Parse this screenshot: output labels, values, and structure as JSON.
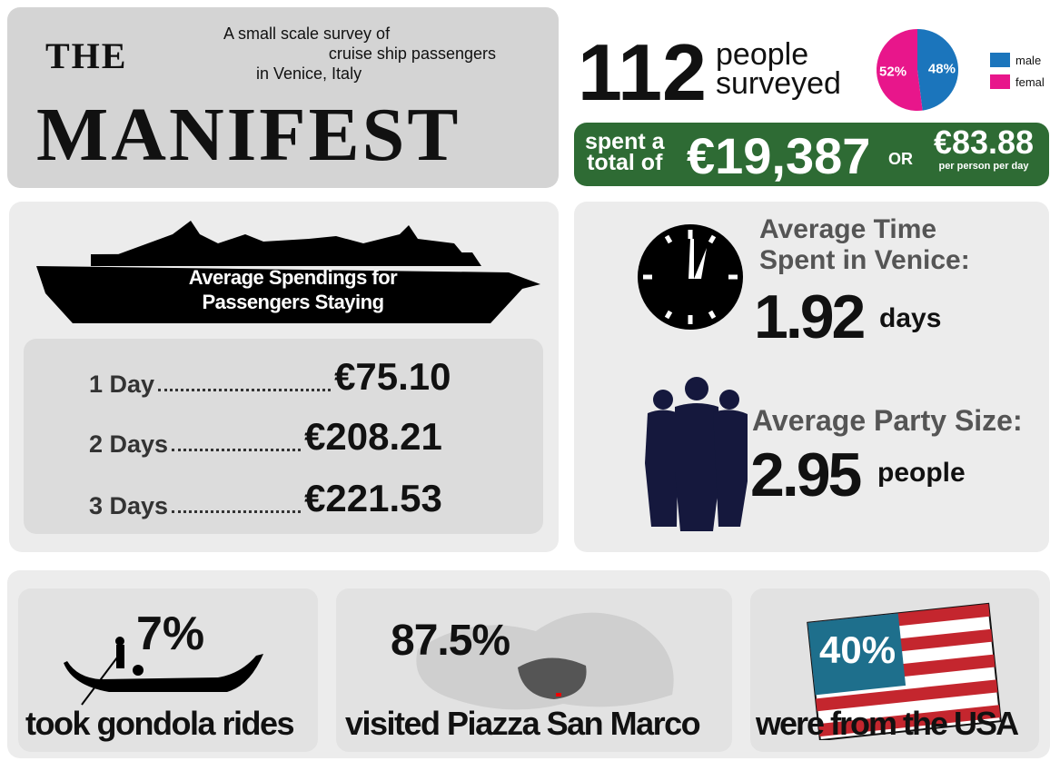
{
  "header": {
    "title_top": "THE",
    "title_main": "MANIFEST",
    "subtitle_lines": [
      "A small scale survey of",
      "cruise ship passengers",
      "in Venice, Italy"
    ]
  },
  "survey": {
    "count": "112",
    "count_label_lines": [
      "people",
      "surveyed"
    ]
  },
  "gender": {
    "type": "pie",
    "categories": [
      "male",
      "female"
    ],
    "values": [
      48,
      52
    ],
    "value_labels": [
      "48%",
      "52%"
    ],
    "colors": [
      "#1b75bc",
      "#e8168b"
    ]
  },
  "spending": {
    "prefix_lines": [
      "spent a",
      "total of"
    ],
    "total": "€19,387",
    "or": "OR",
    "per_person": "€83.88",
    "per_person_note": "per person per day"
  },
  "stay": {
    "title_lines": [
      "Average Spendings for",
      "Passengers Staying"
    ],
    "rows": [
      {
        "label": "1 Day",
        "amount": "€75.10"
      },
      {
        "label": "2 Days",
        "amount": "€208.21"
      },
      {
        "label": "3 Days",
        "amount": "€221.53"
      }
    ]
  },
  "time": {
    "title_lines": [
      "Average Time",
      "Spent in Venice:"
    ],
    "value": "1.92",
    "unit": "days"
  },
  "party": {
    "title": "Average Party Size:",
    "value": "2.95",
    "unit": "people"
  },
  "stats": [
    {
      "value": "7%",
      "label": "took gondola rides"
    },
    {
      "value": "87.5%",
      "label": "visited Piazza San Marco"
    },
    {
      "value": "40%",
      "label": "were from the USA"
    }
  ]
}
